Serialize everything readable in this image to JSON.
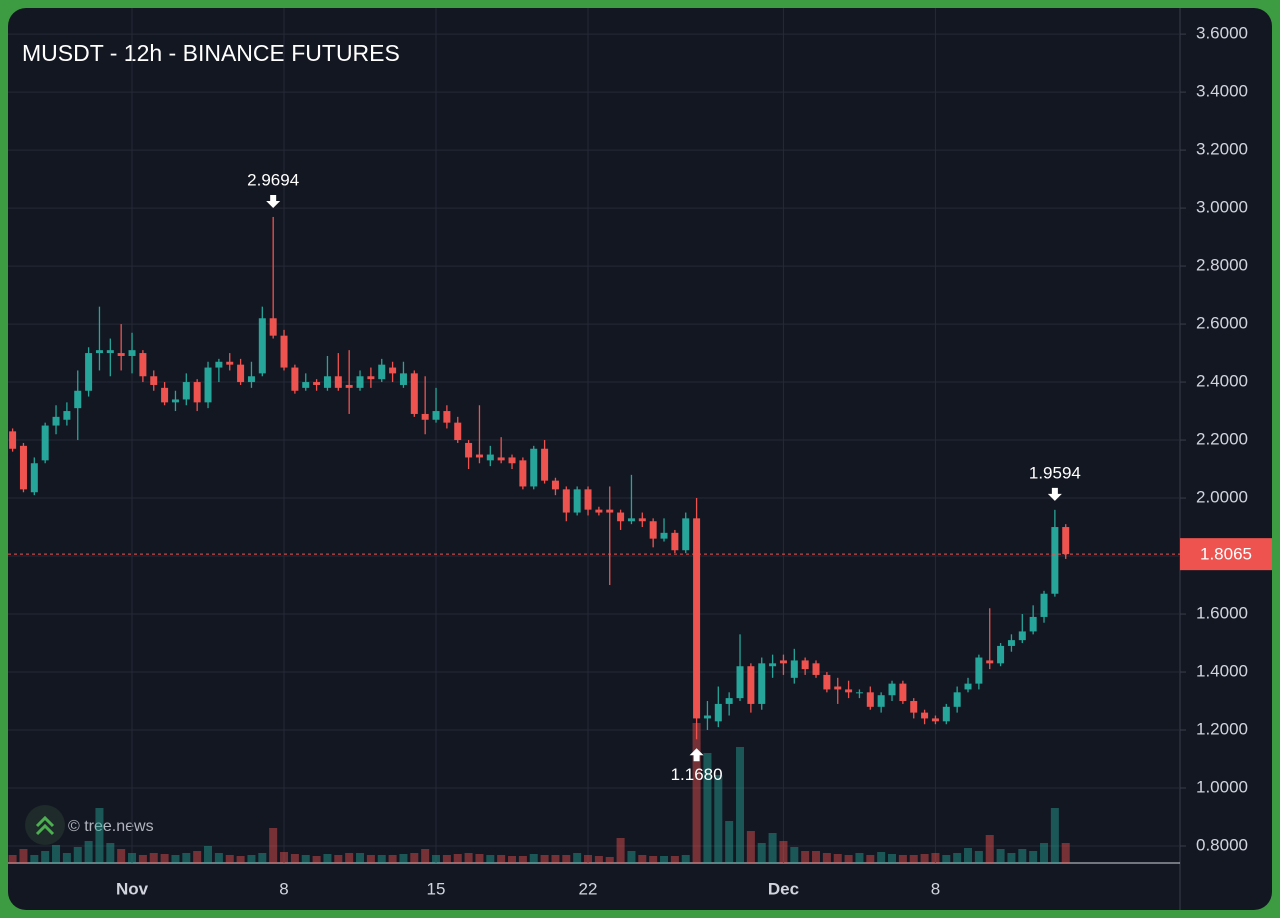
{
  "chart_data": {
    "type": "candlestick",
    "title": "MUSDT - 12h - BINANCE FUTURES",
    "watermark": "© tree.news",
    "categories": [
      null,
      null,
      null,
      null,
      null,
      null,
      null,
      null,
      null,
      null,
      null,
      "Nov",
      null,
      null,
      null,
      null,
      null,
      null,
      null,
      null,
      null,
      null,
      null,
      null,
      null,
      "8",
      null,
      null,
      null,
      null,
      null,
      null,
      null,
      null,
      null,
      null,
      null,
      null,
      null,
      "15",
      null,
      null,
      null,
      null,
      null,
      null,
      null,
      null,
      null,
      null,
      null,
      null,
      null,
      "22",
      null,
      null,
      null,
      null,
      null,
      null,
      null,
      null,
      null,
      null,
      null,
      null,
      null,
      null,
      null,
      null,
      null,
      "Dec",
      null,
      null,
      null,
      null,
      null,
      null,
      null,
      null,
      null,
      null,
      null,
      null,
      null,
      "8",
      null,
      null,
      null,
      null,
      null,
      null,
      null,
      null,
      null,
      null,
      null,
      null
    ],
    "open": [
      2.23,
      2.18,
      2.02,
      2.13,
      2.25,
      2.27,
      2.31,
      2.37,
      2.5,
      2.5,
      2.5,
      2.49,
      2.5,
      2.42,
      2.38,
      2.33,
      2.34,
      2.4,
      2.33,
      2.45,
      2.47,
      2.46,
      2.4,
      2.43,
      2.62,
      2.56,
      2.45,
      2.38,
      2.4,
      2.38,
      2.42,
      2.39,
      2.38,
      2.42,
      2.41,
      2.45,
      2.39,
      2.43,
      2.29,
      2.27,
      2.3,
      2.26,
      2.19,
      2.15,
      2.13,
      2.14,
      2.14,
      2.13,
      2.04,
      2.17,
      2.06,
      2.03,
      1.95,
      2.03,
      1.96,
      1.96,
      1.95,
      1.92,
      1.93,
      1.92,
      1.86,
      1.88,
      1.82,
      1.93,
      1.24,
      1.23,
      1.29,
      1.31,
      1.42,
      1.29,
      1.42,
      1.44,
      1.38,
      1.44,
      1.43,
      1.39,
      1.35,
      1.34,
      1.33,
      1.33,
      1.28,
      1.32,
      1.36,
      1.3,
      1.26,
      1.24,
      1.23,
      1.28,
      1.34,
      1.36,
      1.44,
      1.43,
      1.49,
      1.51,
      1.54,
      1.59,
      1.67,
      1.9
    ],
    "high": [
      2.24,
      2.19,
      2.14,
      2.26,
      2.32,
      2.33,
      2.44,
      2.52,
      2.66,
      2.55,
      2.6,
      2.57,
      2.51,
      2.44,
      2.4,
      2.37,
      2.43,
      2.41,
      2.47,
      2.48,
      2.5,
      2.48,
      2.47,
      2.66,
      2.9694,
      2.58,
      2.46,
      2.43,
      2.41,
      2.49,
      2.5,
      2.51,
      2.44,
      2.45,
      2.48,
      2.47,
      2.47,
      2.44,
      2.42,
      2.38,
      2.32,
      2.28,
      2.2,
      2.32,
      2.18,
      2.21,
      2.15,
      2.14,
      2.18,
      2.2,
      2.07,
      2.04,
      2.04,
      2.04,
      1.97,
      2.04,
      1.96,
      2.08,
      1.95,
      1.93,
      1.93,
      1.89,
      1.95,
      2.0,
      1.3,
      1.35,
      1.33,
      1.53,
      1.43,
      1.45,
      1.46,
      1.46,
      1.48,
      1.45,
      1.44,
      1.4,
      1.38,
      1.37,
      1.34,
      1.35,
      1.33,
      1.37,
      1.37,
      1.31,
      1.27,
      1.25,
      1.29,
      1.35,
      1.38,
      1.46,
      1.62,
      1.5,
      1.53,
      1.6,
      1.63,
      1.68,
      1.9594,
      1.91
    ],
    "low": [
      2.16,
      2.02,
      2.01,
      2.12,
      2.22,
      2.25,
      2.2,
      2.35,
      2.44,
      2.42,
      2.44,
      2.43,
      2.4,
      2.37,
      2.32,
      2.3,
      2.32,
      2.3,
      2.31,
      2.4,
      2.44,
      2.39,
      2.38,
      2.42,
      2.55,
      2.44,
      2.36,
      2.37,
      2.37,
      2.37,
      2.37,
      2.29,
      2.37,
      2.38,
      2.4,
      2.4,
      2.38,
      2.28,
      2.22,
      2.26,
      2.24,
      2.19,
      2.1,
      2.12,
      2.11,
      2.12,
      2.1,
      2.03,
      2.03,
      2.05,
      2.01,
      1.92,
      1.94,
      1.94,
      1.94,
      1.7,
      1.89,
      1.91,
      1.9,
      1.83,
      1.85,
      1.81,
      1.81,
      1.168,
      1.2,
      1.21,
      1.25,
      1.3,
      1.26,
      1.27,
      1.38,
      1.39,
      1.36,
      1.39,
      1.38,
      1.33,
      1.29,
      1.31,
      1.31,
      1.27,
      1.26,
      1.3,
      1.29,
      1.24,
      1.22,
      1.22,
      1.22,
      1.26,
      1.33,
      1.34,
      1.41,
      1.42,
      1.47,
      1.5,
      1.53,
      1.57,
      1.66,
      1.79
    ],
    "close": [
      2.17,
      2.03,
      2.12,
      2.25,
      2.28,
      2.3,
      2.37,
      2.5,
      2.51,
      2.51,
      2.49,
      2.51,
      2.42,
      2.39,
      2.33,
      2.34,
      2.4,
      2.33,
      2.45,
      2.47,
      2.46,
      2.4,
      2.42,
      2.62,
      2.56,
      2.45,
      2.37,
      2.4,
      2.39,
      2.42,
      2.38,
      2.38,
      2.42,
      2.41,
      2.46,
      2.43,
      2.43,
      2.29,
      2.27,
      2.3,
      2.26,
      2.2,
      2.14,
      2.14,
      2.15,
      2.13,
      2.12,
      2.04,
      2.17,
      2.06,
      2.03,
      1.95,
      2.03,
      1.96,
      1.95,
      1.95,
      1.92,
      1.93,
      1.92,
      1.86,
      1.88,
      1.82,
      1.93,
      1.24,
      1.25,
      1.29,
      1.31,
      1.42,
      1.29,
      1.43,
      1.43,
      1.43,
      1.44,
      1.41,
      1.39,
      1.34,
      1.34,
      1.33,
      1.33,
      1.28,
      1.32,
      1.36,
      1.3,
      1.26,
      1.24,
      1.23,
      1.28,
      1.33,
      1.36,
      1.45,
      1.43,
      1.49,
      1.51,
      1.54,
      1.59,
      1.67,
      1.9,
      1.8065
    ],
    "volume": [
      8,
      14,
      8,
      12,
      18,
      10,
      16,
      22,
      55,
      20,
      14,
      10,
      8,
      10,
      9,
      8,
      10,
      12,
      17,
      10,
      8,
      7,
      8,
      10,
      35,
      11,
      9,
      8,
      7,
      9,
      8,
      10,
      10,
      8,
      8,
      8,
      9,
      10,
      14,
      8,
      8,
      9,
      10,
      9,
      8,
      8,
      7,
      7,
      9,
      8,
      8,
      8,
      10,
      8,
      7,
      6,
      25,
      12,
      8,
      7,
      7,
      7,
      8,
      140,
      110,
      88,
      42,
      116,
      32,
      20,
      30,
      22,
      16,
      12,
      12,
      10,
      9,
      8,
      10,
      8,
      11,
      9,
      8,
      8,
      9,
      10,
      8,
      10,
      15,
      12,
      28,
      14,
      10,
      14,
      12,
      20,
      55,
      20
    ],
    "up_color": "#26a69a",
    "down_color": "#ef5350",
    "ylim": [
      0.7414,
      3.69
    ],
    "yticks": [
      {
        "value": 0.8,
        "label": "0.8000"
      },
      {
        "value": 1.0,
        "label": "1.0000"
      },
      {
        "value": 1.2,
        "label": "1.2000"
      },
      {
        "value": 1.4,
        "label": "1.4000"
      },
      {
        "value": 1.6,
        "label": "1.6000"
      },
      {
        "value": 1.8,
        "label": "1.8000"
      },
      {
        "value": 2.0,
        "label": "2.0000"
      },
      {
        "value": 2.2,
        "label": "2.2000"
      },
      {
        "value": 2.4,
        "label": "2.4000"
      },
      {
        "value": 2.6,
        "label": "2.6000"
      },
      {
        "value": 2.8,
        "label": "2.8000"
      },
      {
        "value": 3.0,
        "label": "3.0000"
      },
      {
        "value": 3.2,
        "label": "3.2000"
      },
      {
        "value": 3.4,
        "label": "3.4000"
      },
      {
        "value": 3.6,
        "label": "3.6000"
      }
    ],
    "grid": true,
    "last_price": 1.8065,
    "high_markers": [
      2.9694,
      1.9594
    ],
    "low_markers": [
      {
        "value": 1.168,
        "label": "1.1680"
      }
    ]
  }
}
